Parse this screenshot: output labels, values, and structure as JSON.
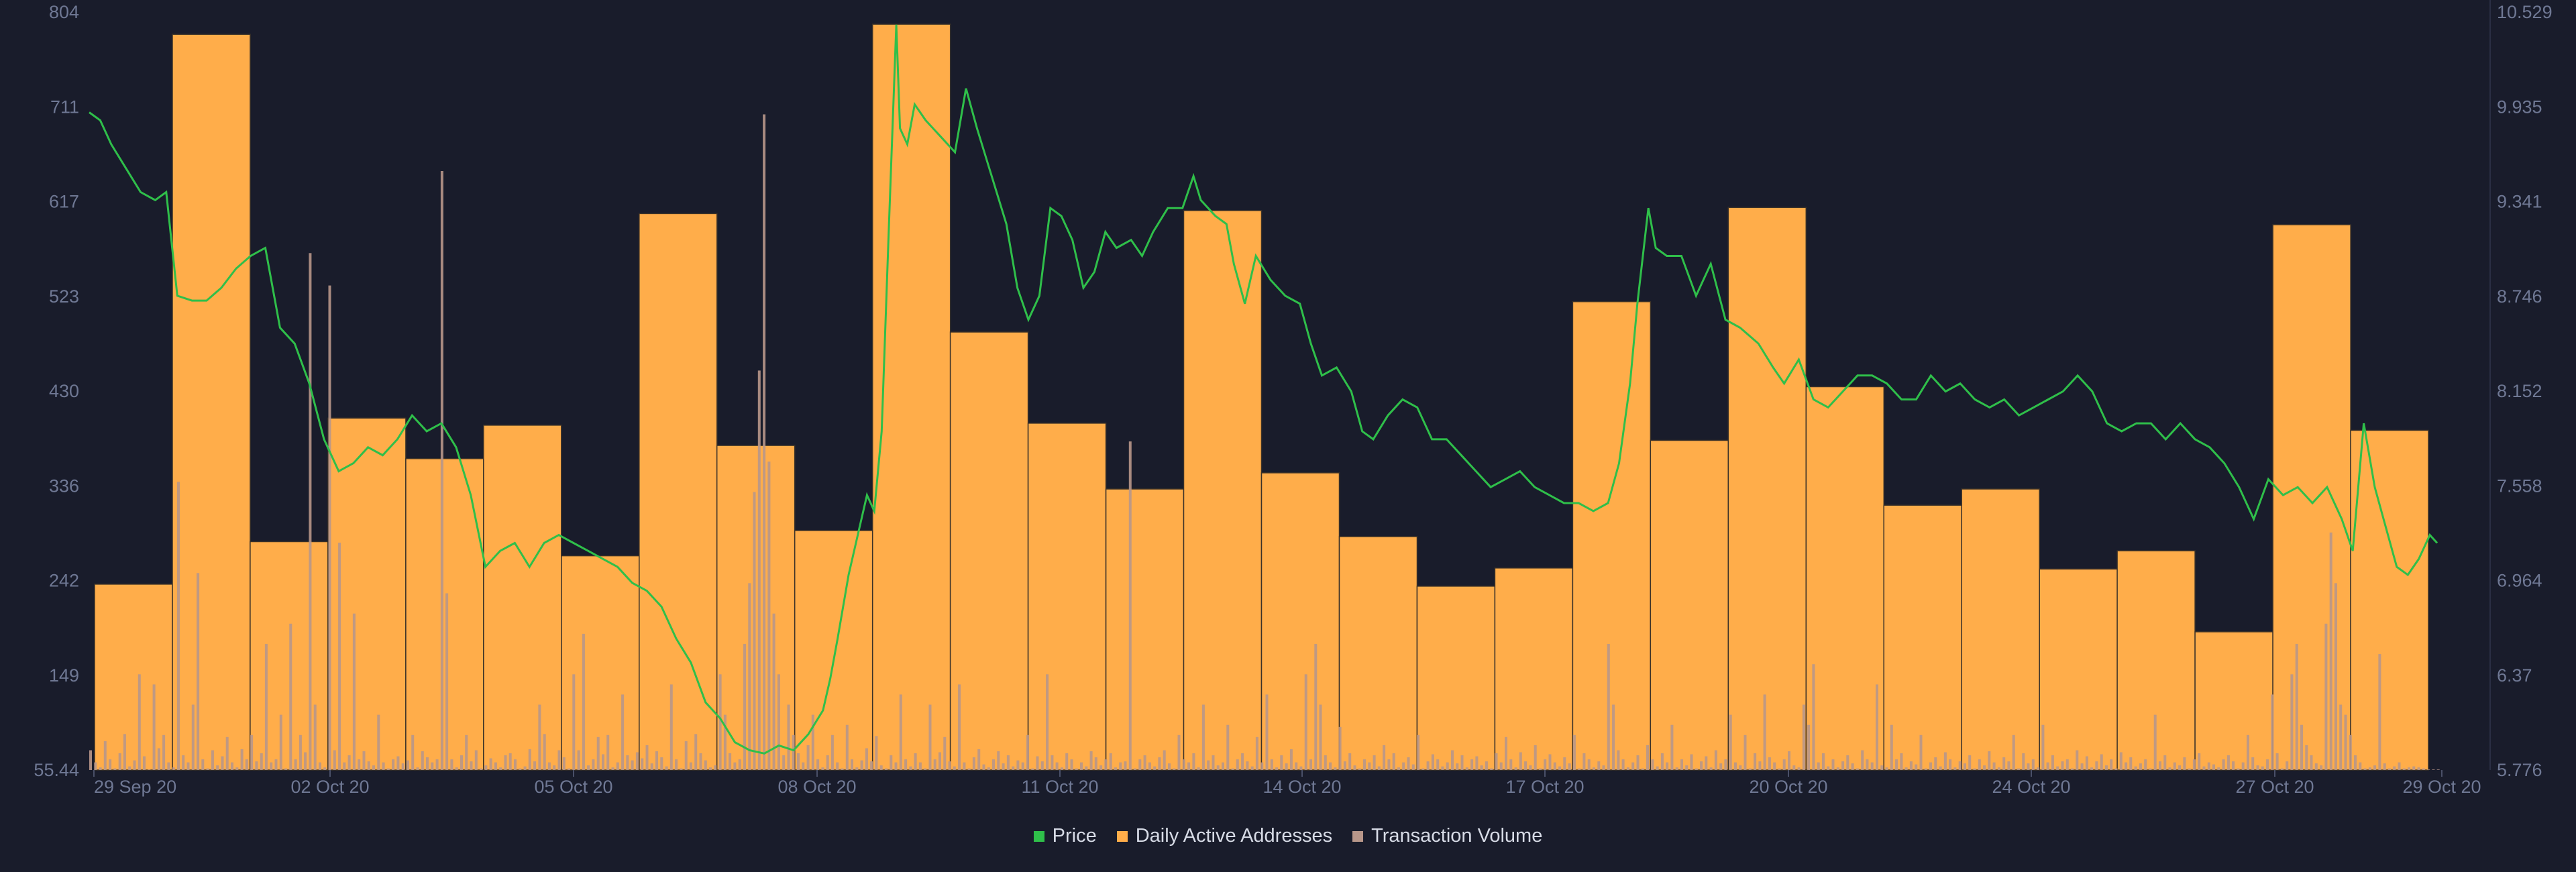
{
  "chart_data": {
    "type": "bar",
    "x_ticks": [
      "29 Sep 20",
      "02 Oct 20",
      "05 Oct 20",
      "08 Oct 20",
      "11 Oct 20",
      "14 Oct 20",
      "17 Oct 20",
      "20 Oct 20",
      "24 Oct 20",
      "27 Oct 20",
      "29 Oct 20"
    ],
    "y_left": {
      "ticks": [
        "804",
        "711",
        "617",
        "523",
        "430",
        "336",
        "242",
        "149",
        "55.44"
      ],
      "range": [
        55.44,
        804
      ]
    },
    "y_right": {
      "ticks": [
        "10.529",
        "9.935",
        "9.341",
        "8.746",
        "8.152",
        "7.558",
        "6.964",
        "6.37",
        "5.776"
      ],
      "range": [
        5.776,
        10.529
      ]
    },
    "legend": [
      {
        "name": "Price",
        "color": "#2fbf4a"
      },
      {
        "name": "Daily Active Addresses",
        "color": "#ffad4a"
      },
      {
        "name": "Transaction Volume",
        "color": "#b8978a"
      }
    ],
    "grid": false,
    "legend_position": "bottom-center",
    "series": [
      {
        "name": "Daily Active Addresses",
        "axis": "left",
        "type": "bar",
        "values": [
          239,
          782,
          281,
          403,
          363,
          396,
          267,
          605,
          376,
          292,
          792,
          488,
          398,
          333,
          608,
          349,
          286,
          237,
          255,
          518,
          381,
          611,
          434,
          317,
          333,
          254,
          272,
          192,
          594,
          391
        ]
      },
      {
        "name": "Price",
        "axis": "right",
        "type": "line",
        "points": [
          [
            0.0,
            9.9
          ],
          [
            0.15,
            9.85
          ],
          [
            0.3,
            9.7
          ],
          [
            0.5,
            9.55
          ],
          [
            0.7,
            9.4
          ],
          [
            0.9,
            9.35
          ],
          [
            1.05,
            9.4
          ],
          [
            1.2,
            8.75
          ],
          [
            1.4,
            8.72
          ],
          [
            1.6,
            8.72
          ],
          [
            1.8,
            8.8
          ],
          [
            2.0,
            8.92
          ],
          [
            2.2,
            9.0
          ],
          [
            2.4,
            9.05
          ],
          [
            2.6,
            8.55
          ],
          [
            2.8,
            8.45
          ],
          [
            3.0,
            8.2
          ],
          [
            3.2,
            7.85
          ],
          [
            3.4,
            7.65
          ],
          [
            3.6,
            7.7
          ],
          [
            3.8,
            7.8
          ],
          [
            4.0,
            7.75
          ],
          [
            4.2,
            7.85
          ],
          [
            4.4,
            8.0
          ],
          [
            4.6,
            7.9
          ],
          [
            4.8,
            7.95
          ],
          [
            5.0,
            7.8
          ],
          [
            5.2,
            7.5
          ],
          [
            5.4,
            7.05
          ],
          [
            5.6,
            7.15
          ],
          [
            5.8,
            7.2
          ],
          [
            6.0,
            7.05
          ],
          [
            6.2,
            7.2
          ],
          [
            6.4,
            7.25
          ],
          [
            6.6,
            7.2
          ],
          [
            6.8,
            7.15
          ],
          [
            7.0,
            7.1
          ],
          [
            7.2,
            7.05
          ],
          [
            7.4,
            6.95
          ],
          [
            7.6,
            6.9
          ],
          [
            7.8,
            6.8
          ],
          [
            8.0,
            6.6
          ],
          [
            8.2,
            6.45
          ],
          [
            8.4,
            6.2
          ],
          [
            8.6,
            6.1
          ],
          [
            8.8,
            5.95
          ],
          [
            9.0,
            5.9
          ],
          [
            9.2,
            5.88
          ],
          [
            9.4,
            5.93
          ],
          [
            9.6,
            5.9
          ],
          [
            9.8,
            6.0
          ],
          [
            10.0,
            6.15
          ],
          [
            10.1,
            6.35
          ],
          [
            10.2,
            6.6
          ],
          [
            10.35,
            7.0
          ],
          [
            10.5,
            7.3
          ],
          [
            10.6,
            7.5
          ],
          [
            10.7,
            7.4
          ],
          [
            10.8,
            7.9
          ],
          [
            10.9,
            9.2
          ],
          [
            11.0,
            10.45
          ],
          [
            11.05,
            9.8
          ],
          [
            11.15,
            9.7
          ],
          [
            11.25,
            9.95
          ],
          [
            11.4,
            9.85
          ],
          [
            11.6,
            9.75
          ],
          [
            11.8,
            9.65
          ],
          [
            11.95,
            10.05
          ],
          [
            12.1,
            9.8
          ],
          [
            12.3,
            9.5
          ],
          [
            12.5,
            9.2
          ],
          [
            12.65,
            8.8
          ],
          [
            12.8,
            8.6
          ],
          [
            12.95,
            8.75
          ],
          [
            13.1,
            9.3
          ],
          [
            13.25,
            9.25
          ],
          [
            13.4,
            9.1
          ],
          [
            13.55,
            8.8
          ],
          [
            13.7,
            8.9
          ],
          [
            13.85,
            9.15
          ],
          [
            14.0,
            9.05
          ],
          [
            14.2,
            9.1
          ],
          [
            14.35,
            9.0
          ],
          [
            14.5,
            9.15
          ],
          [
            14.7,
            9.3
          ],
          [
            14.9,
            9.3
          ],
          [
            15.05,
            9.5
          ],
          [
            15.15,
            9.35
          ],
          [
            15.35,
            9.25
          ],
          [
            15.5,
            9.2
          ],
          [
            15.6,
            8.95
          ],
          [
            15.75,
            8.7
          ],
          [
            15.9,
            9.0
          ],
          [
            16.1,
            8.85
          ],
          [
            16.3,
            8.75
          ],
          [
            16.5,
            8.7
          ],
          [
            16.65,
            8.45
          ],
          [
            16.8,
            8.25
          ],
          [
            17.0,
            8.3
          ],
          [
            17.2,
            8.15
          ],
          [
            17.35,
            7.9
          ],
          [
            17.5,
            7.85
          ],
          [
            17.7,
            8.0
          ],
          [
            17.9,
            8.1
          ],
          [
            18.1,
            8.05
          ],
          [
            18.3,
            7.85
          ],
          [
            18.5,
            7.85
          ],
          [
            18.7,
            7.75
          ],
          [
            18.9,
            7.65
          ],
          [
            19.1,
            7.55
          ],
          [
            19.3,
            7.6
          ],
          [
            19.5,
            7.65
          ],
          [
            19.7,
            7.55
          ],
          [
            19.9,
            7.5
          ],
          [
            20.1,
            7.45
          ],
          [
            20.3,
            7.45
          ],
          [
            20.5,
            7.4
          ],
          [
            20.7,
            7.45
          ],
          [
            20.85,
            7.7
          ],
          [
            21.0,
            8.2
          ],
          [
            21.1,
            8.7
          ],
          [
            21.25,
            9.3
          ],
          [
            21.35,
            9.05
          ],
          [
            21.5,
            9.0
          ],
          [
            21.7,
            9.0
          ],
          [
            21.9,
            8.75
          ],
          [
            22.1,
            8.95
          ],
          [
            22.3,
            8.6
          ],
          [
            22.5,
            8.55
          ],
          [
            22.75,
            8.45
          ],
          [
            22.95,
            8.3
          ],
          [
            23.1,
            8.2
          ],
          [
            23.3,
            8.35
          ],
          [
            23.5,
            8.1
          ],
          [
            23.7,
            8.05
          ],
          [
            23.9,
            8.15
          ],
          [
            24.1,
            8.25
          ],
          [
            24.3,
            8.25
          ],
          [
            24.5,
            8.2
          ],
          [
            24.7,
            8.1
          ],
          [
            24.9,
            8.1
          ],
          [
            25.1,
            8.25
          ],
          [
            25.3,
            8.15
          ],
          [
            25.5,
            8.2
          ],
          [
            25.7,
            8.1
          ],
          [
            25.9,
            8.05
          ],
          [
            26.1,
            8.1
          ],
          [
            26.3,
            8.0
          ],
          [
            26.5,
            8.05
          ],
          [
            26.7,
            8.1
          ],
          [
            26.9,
            8.15
          ],
          [
            27.1,
            8.25
          ],
          [
            27.3,
            8.15
          ],
          [
            27.5,
            7.95
          ],
          [
            27.7,
            7.9
          ],
          [
            27.9,
            7.95
          ],
          [
            28.1,
            7.95
          ],
          [
            28.3,
            7.85
          ],
          [
            28.5,
            7.95
          ],
          [
            28.7,
            7.85
          ],
          [
            28.9,
            7.8
          ],
          [
            29.1,
            7.7
          ],
          [
            29.3,
            7.55
          ],
          [
            29.5,
            7.35
          ],
          [
            29.7,
            7.6
          ],
          [
            29.9,
            7.5
          ],
          [
            30.1,
            7.55
          ],
          [
            30.3,
            7.45
          ],
          [
            30.5,
            7.55
          ],
          [
            30.7,
            7.35
          ],
          [
            30.85,
            7.15
          ],
          [
            31.0,
            7.95
          ],
          [
            31.15,
            7.55
          ],
          [
            31.3,
            7.3
          ],
          [
            31.45,
            7.05
          ],
          [
            31.6,
            7.0
          ],
          [
            31.75,
            7.1
          ],
          [
            31.9,
            7.25
          ],
          [
            32.0,
            7.2
          ]
        ]
      },
      {
        "name": "Transaction Volume",
        "axis": "left",
        "type": "bar",
        "values": [
          75,
          63,
          58,
          84,
          66,
          57,
          72,
          91,
          59,
          65,
          150,
          69,
          56,
          140,
          77,
          90,
          63,
          58,
          340,
          70,
          63,
          120,
          250,
          66,
          57,
          75,
          60,
          69,
          88,
          63,
          58,
          76,
          66,
          90,
          64,
          72,
          180,
          63,
          66,
          110,
          57,
          200,
          66,
          90,
          73,
          566,
          120,
          63,
          58,
          534,
          75,
          280,
          63,
          70,
          210,
          66,
          74,
          64,
          60,
          110,
          63,
          57,
          66,
          69,
          62,
          65,
          90,
          58,
          74,
          68,
          63,
          66,
          647,
          230,
          66,
          58,
          70,
          90,
          64,
          75,
          57,
          60,
          67,
          63,
          58,
          70,
          72,
          66,
          57,
          59,
          76,
          64,
          120,
          91,
          63,
          60,
          75,
          68,
          57,
          150,
          75,
          190,
          60,
          66,
          88,
          71,
          90,
          58,
          63,
          130,
          70,
          65,
          73,
          67,
          80,
          62,
          74,
          68,
          59,
          140,
          66,
          57,
          84,
          63,
          91,
          72,
          65,
          58,
          60,
          150,
          110,
          72,
          63,
          66,
          180,
          240,
          330,
          450,
          703,
          360,
          210,
          150,
          70,
          120,
          90,
          72,
          63,
          80,
          110,
          66,
          58,
          70,
          90,
          63,
          57,
          100,
          66,
          58,
          65,
          77,
          64,
          89,
          60,
          57,
          70,
          63,
          130,
          66,
          59,
          72,
          63,
          57,
          120,
          66,
          73,
          88,
          64,
          59,
          140,
          63,
          57,
          68,
          76,
          61,
          58,
          66,
          74,
          62,
          70,
          59,
          65,
          63,
          90,
          57,
          69,
          64,
          150,
          70,
          63,
          58,
          72,
          66,
          57,
          63,
          59,
          74,
          68,
          60,
          66,
          72,
          58,
          63,
          64,
          380,
          57,
          66,
          70,
          63,
          59,
          68,
          75,
          62,
          57,
          90,
          66,
          63,
          72,
          58,
          120,
          65,
          70,
          60,
          63,
          100,
          57,
          66,
          72,
          64,
          59,
          88,
          63,
          130,
          66,
          58,
          70,
          62,
          76,
          63,
          59,
          150,
          66,
          180,
          120,
          70,
          63,
          58,
          98,
          64,
          72,
          60,
          57,
          66,
          63,
          70,
          59,
          80,
          66,
          72,
          58,
          63,
          68,
          61,
          90,
          57,
          64,
          71,
          66,
          59,
          63,
          75,
          62,
          70,
          58,
          66,
          69,
          60,
          64,
          57,
          72,
          63,
          88,
          66,
          58,
          73,
          64,
          60,
          80,
          57,
          66,
          71,
          63,
          59,
          68,
          62,
          90,
          57,
          72,
          66,
          58,
          64,
          60,
          180,
          120,
          75,
          66,
          58,
          63,
          70,
          57,
          80,
          66,
          59,
          72,
          63,
          100,
          58,
          66,
          60,
          71,
          57,
          64,
          69,
          58,
          75,
          62,
          66,
          110,
          63,
          60,
          90,
          57,
          72,
          64,
          130,
          68,
          63,
          57,
          66,
          74,
          60,
          58,
          120,
          100,
          160,
          63,
          72,
          59,
          66,
          58,
          64,
          70,
          62,
          57,
          75,
          66,
          63,
          140,
          60,
          58,
          100,
          66,
          72,
          58,
          64,
          61,
          90,
          57,
          63,
          68,
          59,
          73,
          66,
          58,
          64,
          62,
          70,
          57,
          66,
          60,
          74,
          63,
          58,
          68,
          64,
          90,
          57,
          72,
          62,
          66,
          58,
          100,
          63,
          70,
          59,
          64,
          66,
          57,
          75,
          62,
          69,
          58,
          64,
          71,
          60,
          66,
          57,
          73,
          63,
          68,
          59,
          62,
          66,
          57,
          110,
          64,
          70,
          58,
          63,
          60,
          68,
          57,
          66,
          72,
          59,
          63,
          61,
          58,
          66,
          70,
          64,
          57,
          63,
          90,
          68,
          60,
          59,
          66,
          130,
          72,
          57,
          64,
          150,
          180,
          100,
          80,
          70,
          62,
          60,
          200,
          290,
          240,
          120,
          110,
          90,
          70,
          63,
          57,
          58,
          60,
          170,
          62,
          57,
          59,
          63,
          57,
          58,
          59,
          58,
          57,
          56,
          56,
          56
        ]
      }
    ]
  }
}
